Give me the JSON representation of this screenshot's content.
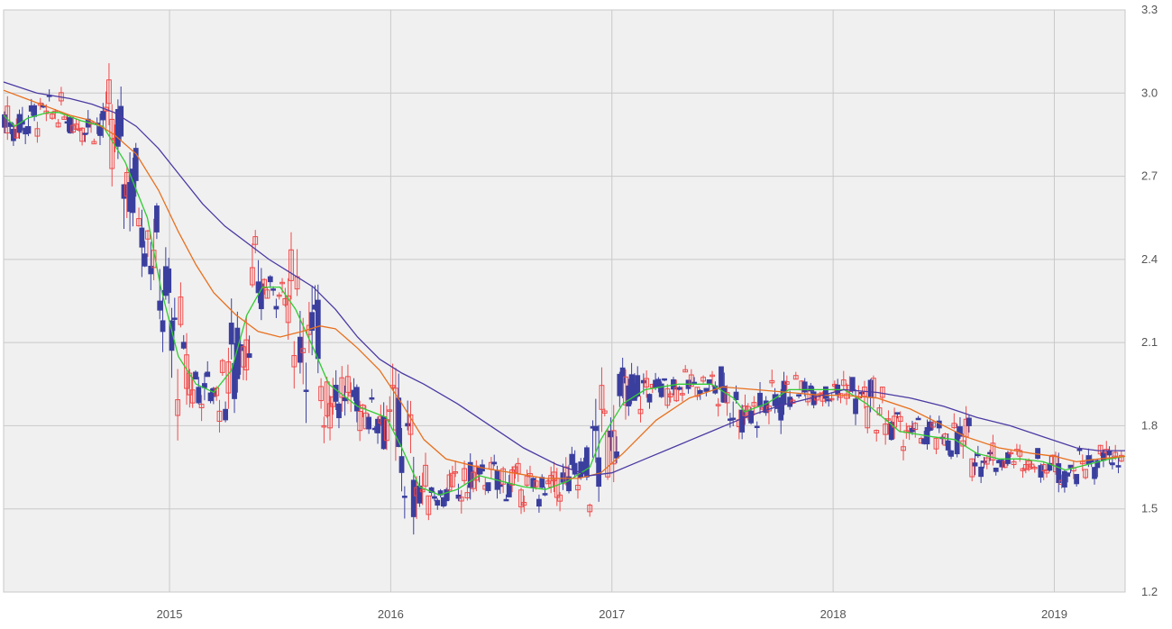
{
  "chart_data": {
    "type": "candlestick",
    "x_axis": {
      "ticks": [
        "2015",
        "2016",
        "2017",
        "2018",
        "2019"
      ],
      "range": [
        2014.25,
        2019.32
      ]
    },
    "y_axis": {
      "ticks": [
        "1.2",
        "1.5",
        "1.8",
        "2.1",
        "2.4",
        "2.7",
        "3.0",
        "3.3"
      ],
      "ylim": [
        1.2,
        3.3
      ],
      "position": "right"
    },
    "grid": true,
    "colors": {
      "up": "#ef4a4a",
      "down": "#3a3f9e",
      "ma_short": "#33cc33",
      "ma_mid": "#e8701e",
      "ma_long": "#4b3aa3",
      "plot_bg": "#f0f0f0",
      "grid": "#c9c9c9"
    },
    "series": [
      {
        "values": [
          [
            2014.25,
            2.92
          ],
          [
            2014.3,
            2.88
          ],
          [
            2014.36,
            2.91
          ],
          [
            2014.45,
            2.93
          ],
          [
            2014.5,
            2.93
          ],
          [
            2014.6,
            2.9
          ],
          [
            2014.7,
            2.88
          ],
          [
            2014.8,
            2.75
          ],
          [
            2014.9,
            2.55
          ],
          [
            2014.96,
            2.3
          ],
          [
            2015.04,
            2.05
          ],
          [
            2015.12,
            1.95
          ],
          [
            2015.2,
            1.92
          ],
          [
            2015.28,
            2.0
          ],
          [
            2015.35,
            2.2
          ],
          [
            2015.42,
            2.3
          ],
          [
            2015.5,
            2.3
          ],
          [
            2015.57,
            2.22
          ],
          [
            2015.65,
            2.08
          ],
          [
            2015.72,
            1.95
          ],
          [
            2015.85,
            1.87
          ],
          [
            2015.98,
            1.83
          ],
          [
            2016.05,
            1.72
          ],
          [
            2016.13,
            1.58
          ],
          [
            2016.22,
            1.55
          ],
          [
            2016.3,
            1.57
          ],
          [
            2016.4,
            1.62
          ],
          [
            2016.5,
            1.6
          ],
          [
            2016.6,
            1.58
          ],
          [
            2016.7,
            1.57
          ],
          [
            2016.8,
            1.6
          ],
          [
            2016.9,
            1.65
          ],
          [
            2016.95,
            1.75
          ],
          [
            2017.05,
            1.88
          ],
          [
            2017.15,
            1.93
          ],
          [
            2017.3,
            1.95
          ],
          [
            2017.45,
            1.95
          ],
          [
            2017.55,
            1.9
          ],
          [
            2017.6,
            1.85
          ],
          [
            2017.7,
            1.88
          ],
          [
            2017.8,
            1.93
          ],
          [
            2017.95,
            1.93
          ],
          [
            2018.05,
            1.93
          ],
          [
            2018.15,
            1.88
          ],
          [
            2018.3,
            1.78
          ],
          [
            2018.45,
            1.76
          ],
          [
            2018.55,
            1.75
          ],
          [
            2018.65,
            1.7
          ],
          [
            2018.75,
            1.68
          ],
          [
            2018.85,
            1.68
          ],
          [
            2018.95,
            1.67
          ],
          [
            2019.05,
            1.64
          ],
          [
            2019.15,
            1.66
          ],
          [
            2019.25,
            1.68
          ],
          [
            2019.32,
            1.69
          ]
        ]
      },
      {
        "values": [
          [
            2014.25,
            3.01
          ],
          [
            2014.35,
            2.98
          ],
          [
            2014.45,
            2.95
          ],
          [
            2014.55,
            2.92
          ],
          [
            2014.65,
            2.9
          ],
          [
            2014.75,
            2.85
          ],
          [
            2014.85,
            2.78
          ],
          [
            2014.95,
            2.65
          ],
          [
            2015.04,
            2.5
          ],
          [
            2015.12,
            2.38
          ],
          [
            2015.2,
            2.28
          ],
          [
            2015.3,
            2.2
          ],
          [
            2015.4,
            2.14
          ],
          [
            2015.5,
            2.12
          ],
          [
            2015.6,
            2.14
          ],
          [
            2015.68,
            2.16
          ],
          [
            2015.75,
            2.15
          ],
          [
            2015.85,
            2.08
          ],
          [
            2015.95,
            2.0
          ],
          [
            2016.05,
            1.88
          ],
          [
            2016.15,
            1.75
          ],
          [
            2016.25,
            1.68
          ],
          [
            2016.4,
            1.65
          ],
          [
            2016.55,
            1.63
          ],
          [
            2016.7,
            1.61
          ],
          [
            2016.85,
            1.61
          ],
          [
            2016.95,
            1.63
          ],
          [
            2017.05,
            1.7
          ],
          [
            2017.2,
            1.82
          ],
          [
            2017.35,
            1.9
          ],
          [
            2017.5,
            1.94
          ],
          [
            2017.65,
            1.93
          ],
          [
            2017.8,
            1.92
          ],
          [
            2017.95,
            1.91
          ],
          [
            2018.05,
            1.91
          ],
          [
            2018.2,
            1.9
          ],
          [
            2018.35,
            1.86
          ],
          [
            2018.5,
            1.8
          ],
          [
            2018.6,
            1.76
          ],
          [
            2018.75,
            1.72
          ],
          [
            2018.9,
            1.7
          ],
          [
            2019.0,
            1.69
          ],
          [
            2019.1,
            1.67
          ],
          [
            2019.2,
            1.68
          ],
          [
            2019.32,
            1.69
          ]
        ]
      },
      {
        "values": [
          [
            2014.25,
            3.04
          ],
          [
            2014.4,
            3.0
          ],
          [
            2014.55,
            2.98
          ],
          [
            2014.65,
            2.96
          ],
          [
            2014.75,
            2.93
          ],
          [
            2014.85,
            2.88
          ],
          [
            2014.95,
            2.8
          ],
          [
            2015.05,
            2.7
          ],
          [
            2015.15,
            2.6
          ],
          [
            2015.25,
            2.52
          ],
          [
            2015.35,
            2.46
          ],
          [
            2015.45,
            2.4
          ],
          [
            2015.55,
            2.35
          ],
          [
            2015.65,
            2.3
          ],
          [
            2015.75,
            2.22
          ],
          [
            2015.85,
            2.12
          ],
          [
            2015.95,
            2.04
          ],
          [
            2016.05,
            1.99
          ],
          [
            2016.15,
            1.95
          ],
          [
            2016.3,
            1.88
          ],
          [
            2016.45,
            1.8
          ],
          [
            2016.6,
            1.72
          ],
          [
            2016.75,
            1.66
          ],
          [
            2016.9,
            1.62
          ],
          [
            2017.0,
            1.63
          ],
          [
            2017.15,
            1.68
          ],
          [
            2017.3,
            1.73
          ],
          [
            2017.45,
            1.78
          ],
          [
            2017.6,
            1.83
          ],
          [
            2017.75,
            1.87
          ],
          [
            2017.9,
            1.9
          ],
          [
            2018.05,
            1.93
          ],
          [
            2018.2,
            1.92
          ],
          [
            2018.35,
            1.9
          ],
          [
            2018.5,
            1.87
          ],
          [
            2018.65,
            1.83
          ],
          [
            2018.8,
            1.8
          ],
          [
            2018.95,
            1.76
          ],
          [
            2019.1,
            1.72
          ],
          [
            2019.2,
            1.71
          ],
          [
            2019.32,
            1.71
          ]
        ]
      }
    ]
  }
}
